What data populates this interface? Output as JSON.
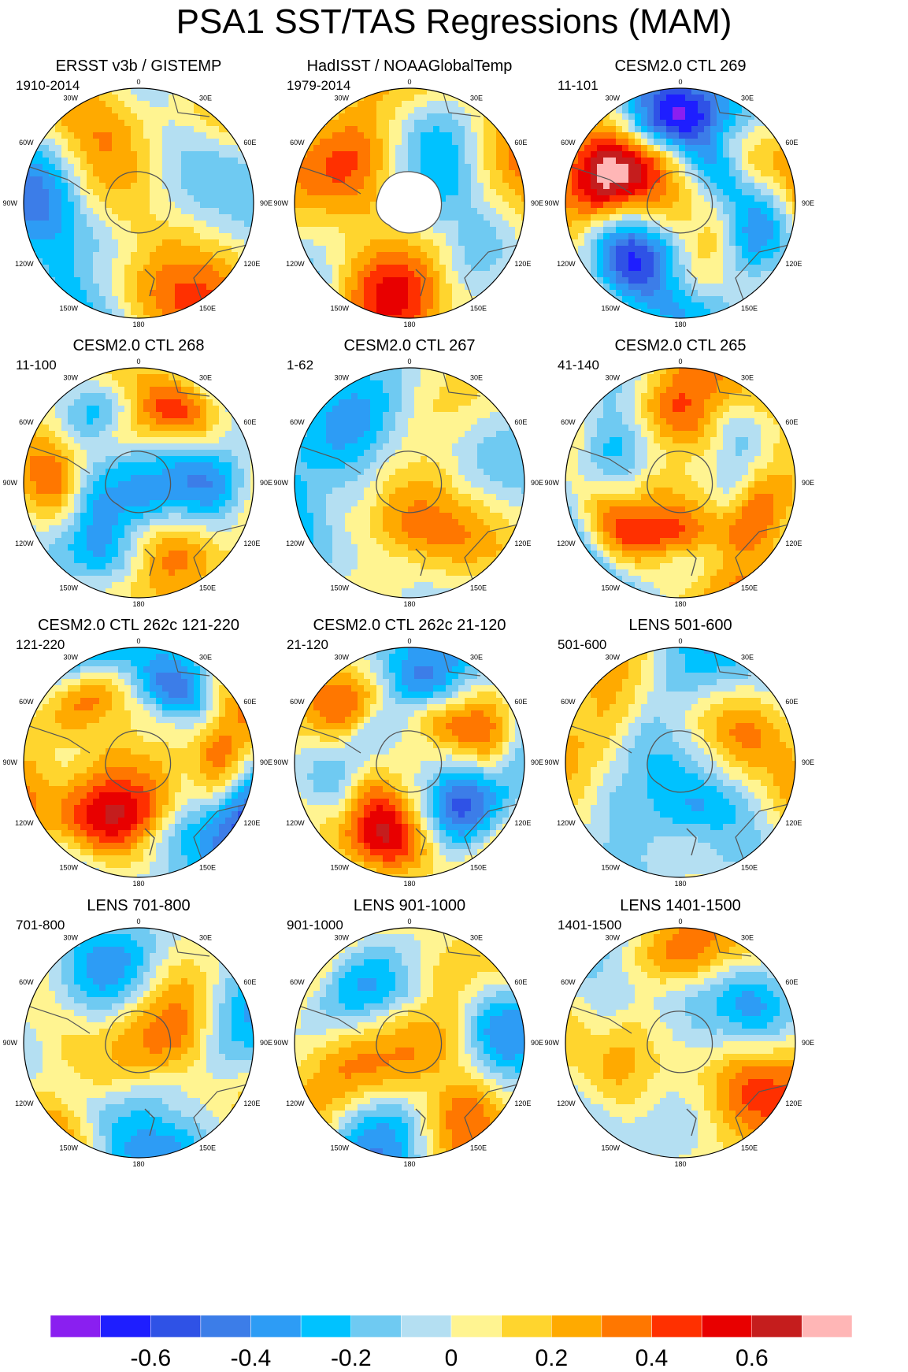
{
  "figure": {
    "title": "PSA1 SST/TAS Regressions (MAM)"
  },
  "chart_data": {
    "type": "polar-map-contour",
    "title": "PSA1 SST/TAS Regressions (MAM)",
    "projection": "south-polar stereographic",
    "longitude_labels": [
      "0",
      "30E",
      "60E",
      "90E",
      "120E",
      "150E",
      "180",
      "150W",
      "120W",
      "90W",
      "60W",
      "30W"
    ],
    "panels": [
      {
        "title": "ERSST v3b / GISTEMP",
        "period": "1910-2014",
        "pattern": "weak",
        "missing_antarctica": false
      },
      {
        "title": "HadISST / NOAAGlobalTemp",
        "period": "1979-2014",
        "pattern": "warm-dominant",
        "missing_antarctica": true
      },
      {
        "title": "CESM2.0 CTL 269",
        "period": "11-101",
        "pattern": "strong",
        "missing_antarctica": false
      },
      {
        "title": "CESM2.0 CTL 268",
        "period": "11-100",
        "pattern": "strong-alt",
        "missing_antarctica": false
      },
      {
        "title": "CESM2.0 CTL 267",
        "period": "1-62",
        "pattern": "weak",
        "missing_antarctica": false
      },
      {
        "title": "CESM2.0 CTL 265",
        "period": "41-140",
        "pattern": "strong",
        "missing_antarctica": false
      },
      {
        "title": "CESM2.0 CTL 262c 121-220",
        "period": "121-220",
        "pattern": "strong",
        "missing_antarctica": false
      },
      {
        "title": "CESM2.0 CTL 262c 21-120",
        "period": "21-120",
        "pattern": "strong",
        "missing_antarctica": false
      },
      {
        "title": "LENS 501-600",
        "period": "501-600",
        "pattern": "lens",
        "missing_antarctica": false
      },
      {
        "title": "LENS 701-800",
        "period": "701-800",
        "pattern": "lens",
        "missing_antarctica": false
      },
      {
        "title": "LENS 901-1000",
        "period": "901-1000",
        "pattern": "lens",
        "missing_antarctica": false
      },
      {
        "title": "LENS 1401-1500",
        "period": "1401-1500",
        "pattern": "lens",
        "missing_antarctica": false
      }
    ],
    "colorbar": {
      "levels": [
        -0.7,
        -0.6,
        -0.5,
        -0.4,
        -0.3,
        -0.2,
        -0.1,
        0,
        0.1,
        0.2,
        0.3,
        0.4,
        0.5,
        0.6,
        0.7
      ],
      "colors": [
        "#8a1ff0",
        "#1e1eff",
        "#2f52e6",
        "#3c7de8",
        "#2d9cf5",
        "#00c2ff",
        "#6fcaf2",
        "#b4dff2",
        "#fff491",
        "#ffd52e",
        "#ffaa00",
        "#ff7700",
        "#ff3000",
        "#e80000",
        "#c51d1d",
        "#ffb6b6"
      ],
      "tick_labels": [
        "-0.6",
        "-0.4",
        "-0.2",
        "0",
        "0.2",
        "0.4",
        "0.6"
      ],
      "tick_values": [
        -0.6,
        -0.4,
        -0.2,
        0,
        0.2,
        0.4,
        0.6
      ]
    }
  }
}
